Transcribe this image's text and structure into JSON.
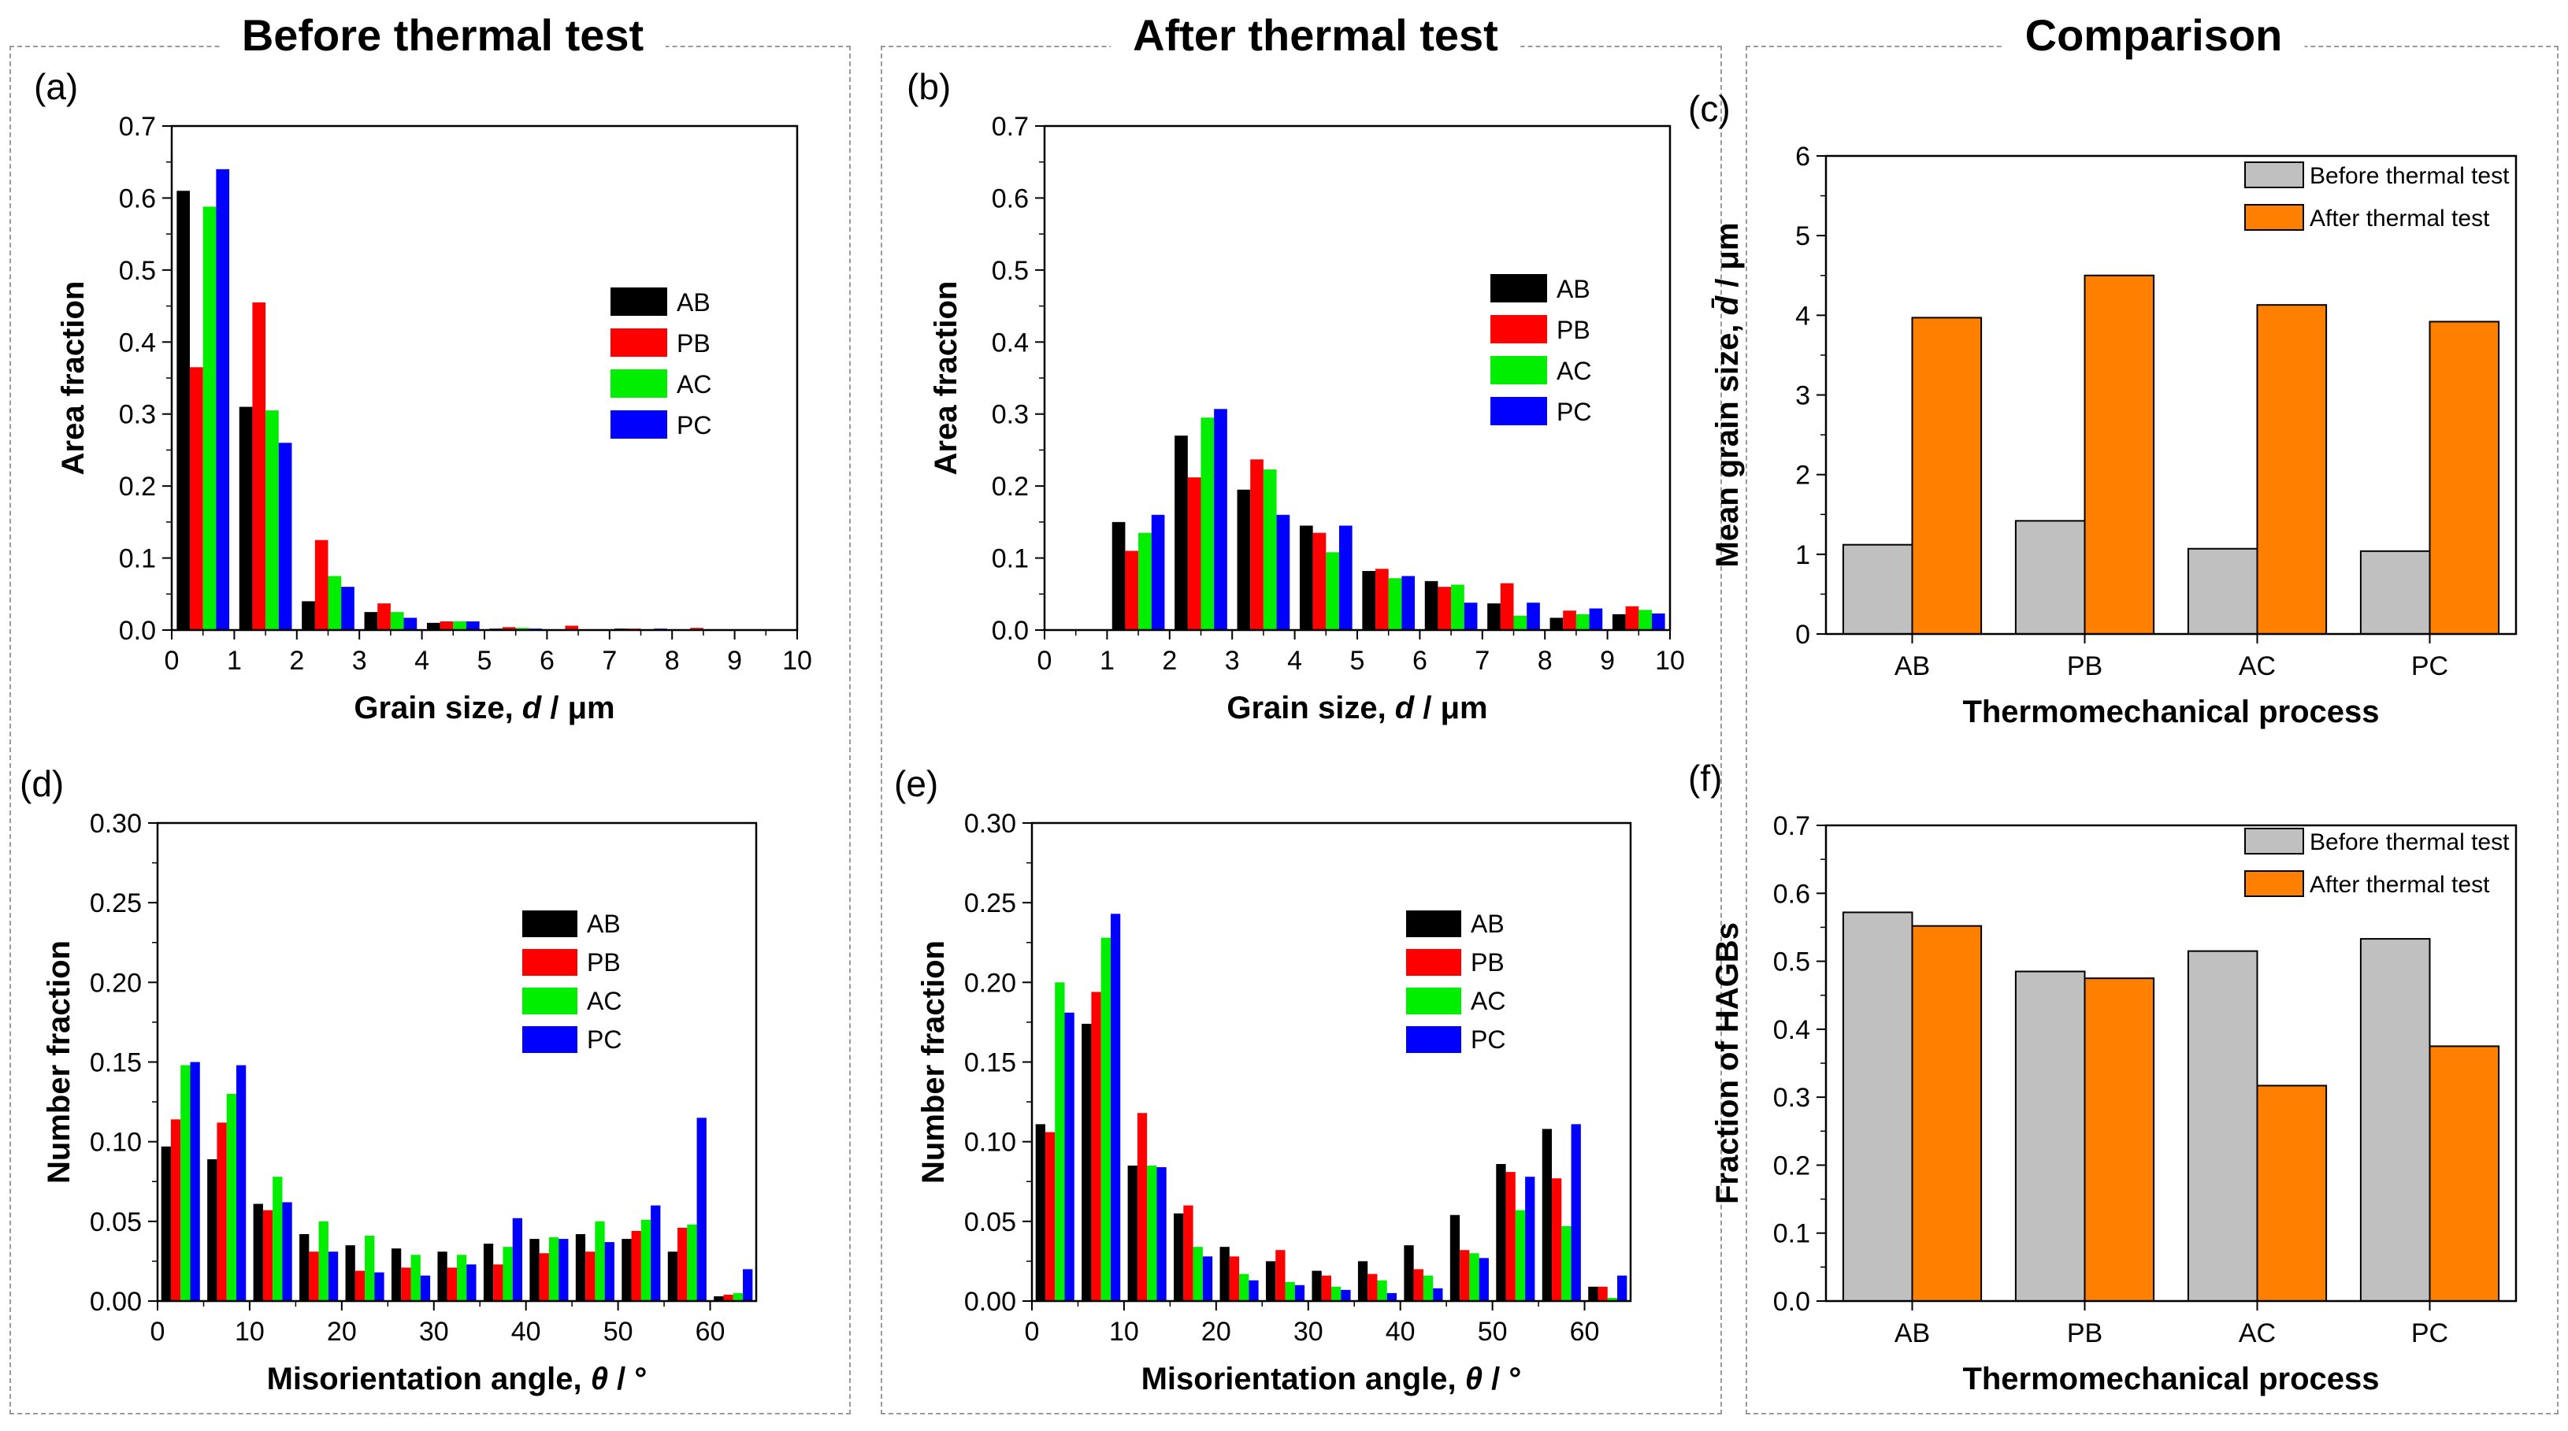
{
  "columns": [
    {
      "title": "Before thermal test"
    },
    {
      "title": "After thermal test"
    },
    {
      "title": "Comparison"
    }
  ],
  "colors": {
    "AB": "#000000",
    "PB": "#ff0000",
    "AC": "#00ee00",
    "PC": "#0000ff",
    "before": "#c0c0c0",
    "after": "#ff8000"
  },
  "chart_data": [
    {
      "panel": "(a)",
      "type": "bar",
      "xlabel": "Grain size, d / μm",
      "ylabel": "Area fraction",
      "xlim": [
        0,
        10
      ],
      "ylim": [
        0,
        0.7
      ],
      "xticks": [
        0,
        1,
        2,
        3,
        4,
        5,
        6,
        7,
        8,
        9,
        10
      ],
      "yticks": [
        0.0,
        0.1,
        0.2,
        0.3,
        0.4,
        0.5,
        0.6,
        0.7
      ],
      "ytick_labels": [
        "0.0",
        "0.1",
        "0.2",
        "0.3",
        "0.4",
        "0.5",
        "0.6",
        "0.7"
      ],
      "bin_centers": [
        0.5,
        1.5,
        2.5,
        3.5,
        4.5,
        5.5,
        6.5,
        7.5,
        8.5,
        9.5
      ],
      "bin_width": 1,
      "legend": [
        "AB",
        "PB",
        "AC",
        "PC"
      ],
      "legend_position": "right",
      "series": [
        {
          "name": "AB",
          "values": [
            0.61,
            0.31,
            0.04,
            0.025,
            0.01,
            0.002,
            0.0,
            0.002,
            0.0,
            0.0
          ]
        },
        {
          "name": "PB",
          "values": [
            0.365,
            0.455,
            0.125,
            0.037,
            0.012,
            0.004,
            0.006,
            0.002,
            0.003,
            0.0
          ]
        },
        {
          "name": "AC",
          "values": [
            0.588,
            0.305,
            0.075,
            0.025,
            0.012,
            0.003,
            0.0,
            0.0,
            0.0,
            0.0
          ]
        },
        {
          "name": "PC",
          "values": [
            0.64,
            0.26,
            0.06,
            0.017,
            0.012,
            0.002,
            0.0,
            0.002,
            0.0,
            0.0
          ]
        }
      ]
    },
    {
      "panel": "(b)",
      "type": "bar",
      "xlabel": "Grain size, d / μm",
      "ylabel": "Area fraction",
      "xlim": [
        0,
        10
      ],
      "ylim": [
        0,
        0.7
      ],
      "xticks": [
        0,
        1,
        2,
        3,
        4,
        5,
        6,
        7,
        8,
        9,
        10
      ],
      "yticks": [
        0.0,
        0.1,
        0.2,
        0.3,
        0.4,
        0.5,
        0.6,
        0.7
      ],
      "ytick_labels": [
        "0.0",
        "0.1",
        "0.2",
        "0.3",
        "0.4",
        "0.5",
        "0.6",
        "0.7"
      ],
      "bin_centers": [
        0.5,
        1.5,
        2.5,
        3.5,
        4.5,
        5.5,
        6.5,
        7.5,
        8.5,
        9.5
      ],
      "bin_width": 1,
      "legend": [
        "AB",
        "PB",
        "AC",
        "PC"
      ],
      "legend_position": "right",
      "series": [
        {
          "name": "AB",
          "values": [
            0.0,
            0.15,
            0.27,
            0.195,
            0.145,
            0.082,
            0.068,
            0.037,
            0.017,
            0.022
          ]
        },
        {
          "name": "PB",
          "values": [
            0.0,
            0.11,
            0.212,
            0.237,
            0.135,
            0.085,
            0.06,
            0.065,
            0.027,
            0.033
          ]
        },
        {
          "name": "AC",
          "values": [
            0.0,
            0.135,
            0.295,
            0.223,
            0.108,
            0.072,
            0.063,
            0.02,
            0.022,
            0.028
          ]
        },
        {
          "name": "PC",
          "values": [
            0.0,
            0.16,
            0.307,
            0.16,
            0.145,
            0.075,
            0.038,
            0.038,
            0.03,
            0.023
          ]
        }
      ]
    },
    {
      "panel": "(c)",
      "type": "bar",
      "xlabel": "Thermomechanical process",
      "ylabel": "Mean grain size, d̄ / μm",
      "categories": [
        "AB",
        "PB",
        "AC",
        "PC"
      ],
      "ylim": [
        0,
        6
      ],
      "yticks": [
        0,
        1,
        2,
        3,
        4,
        5,
        6
      ],
      "ytick_labels": [
        "0",
        "1",
        "2",
        "3",
        "4",
        "5",
        "6"
      ],
      "legend_position": "top-right",
      "series": [
        {
          "name": "Before thermal test",
          "values": [
            1.12,
            1.42,
            1.07,
            1.04
          ]
        },
        {
          "name": "After thermal test",
          "values": [
            3.97,
            4.5,
            4.13,
            3.92
          ]
        }
      ]
    },
    {
      "panel": "(d)",
      "type": "bar",
      "xlabel": "Misorientation angle, θ / °",
      "ylabel": "Number fraction",
      "xlim": [
        0,
        65
      ],
      "ylim": [
        0,
        0.3
      ],
      "xticks": [
        0,
        10,
        20,
        30,
        40,
        50,
        60
      ],
      "yticks": [
        0.0,
        0.05,
        0.1,
        0.15,
        0.2,
        0.25,
        0.3
      ],
      "ytick_labels": [
        "0.00",
        "0.05",
        "0.10",
        "0.15",
        "0.20",
        "0.25",
        "0.30"
      ],
      "bin_centers": [
        2.5,
        7.5,
        12.5,
        17.5,
        22.5,
        27.5,
        32.5,
        37.5,
        42.5,
        47.5,
        52.5,
        57.5,
        62.5
      ],
      "bin_width": 5,
      "legend": [
        "AB",
        "PB",
        "AC",
        "PC"
      ],
      "legend_position": "right",
      "series": [
        {
          "name": "AB",
          "values": [
            0.097,
            0.089,
            0.061,
            0.042,
            0.035,
            0.033,
            0.031,
            0.036,
            0.039,
            0.042,
            0.039,
            0.031,
            0.003
          ]
        },
        {
          "name": "PB",
          "values": [
            0.114,
            0.112,
            0.057,
            0.031,
            0.019,
            0.021,
            0.021,
            0.023,
            0.03,
            0.031,
            0.044,
            0.046,
            0.004
          ]
        },
        {
          "name": "AC",
          "values": [
            0.148,
            0.13,
            0.078,
            0.05,
            0.041,
            0.029,
            0.029,
            0.034,
            0.04,
            0.05,
            0.051,
            0.048,
            0.005
          ]
        },
        {
          "name": "PC",
          "values": [
            0.15,
            0.148,
            0.062,
            0.031,
            0.018,
            0.016,
            0.023,
            0.052,
            0.039,
            0.037,
            0.06,
            0.115,
            0.02
          ]
        }
      ]
    },
    {
      "panel": "(e)",
      "type": "bar",
      "xlabel": "Misorientation angle, θ / °",
      "ylabel": "Number fraction",
      "xlim": [
        0,
        65
      ],
      "ylim": [
        0,
        0.3
      ],
      "xticks": [
        0,
        10,
        20,
        30,
        40,
        50,
        60
      ],
      "yticks": [
        0.0,
        0.05,
        0.1,
        0.15,
        0.2,
        0.25,
        0.3
      ],
      "ytick_labels": [
        "0.00",
        "0.05",
        "0.10",
        "0.15",
        "0.20",
        "0.25",
        "0.30"
      ],
      "bin_centers": [
        2.5,
        7.5,
        12.5,
        17.5,
        22.5,
        27.5,
        32.5,
        37.5,
        42.5,
        47.5,
        52.5,
        57.5,
        62.5
      ],
      "bin_width": 5,
      "legend": [
        "AB",
        "PB",
        "AC",
        "PC"
      ],
      "legend_position": "right",
      "series": [
        {
          "name": "AB",
          "values": [
            0.111,
            0.174,
            0.085,
            0.055,
            0.034,
            0.025,
            0.019,
            0.025,
            0.035,
            0.054,
            0.086,
            0.108,
            0.009
          ]
        },
        {
          "name": "PB",
          "values": [
            0.106,
            0.194,
            0.118,
            0.06,
            0.028,
            0.032,
            0.016,
            0.017,
            0.02,
            0.032,
            0.081,
            0.077,
            0.009
          ]
        },
        {
          "name": "AC",
          "values": [
            0.2,
            0.228,
            0.085,
            0.034,
            0.017,
            0.012,
            0.009,
            0.013,
            0.016,
            0.03,
            0.057,
            0.047,
            0.002
          ]
        },
        {
          "name": "PC",
          "values": [
            0.181,
            0.243,
            0.084,
            0.028,
            0.013,
            0.01,
            0.007,
            0.005,
            0.008,
            0.027,
            0.078,
            0.111,
            0.016
          ]
        }
      ]
    },
    {
      "panel": "(f)",
      "type": "bar",
      "xlabel": "Thermomechanical process",
      "ylabel": "Fraction of HAGBs",
      "categories": [
        "AB",
        "PB",
        "AC",
        "PC"
      ],
      "ylim": [
        0,
        0.7
      ],
      "yticks": [
        0.0,
        0.1,
        0.2,
        0.3,
        0.4,
        0.5,
        0.6,
        0.7
      ],
      "ytick_labels": [
        "0.0",
        "0.1",
        "0.2",
        "0.3",
        "0.4",
        "0.5",
        "0.6",
        "0.7"
      ],
      "legend_position": "top-right",
      "series": [
        {
          "name": "Before thermal test",
          "values": [
            0.572,
            0.485,
            0.515,
            0.533
          ]
        },
        {
          "name": "After thermal test",
          "values": [
            0.552,
            0.475,
            0.317,
            0.375
          ]
        }
      ]
    }
  ]
}
